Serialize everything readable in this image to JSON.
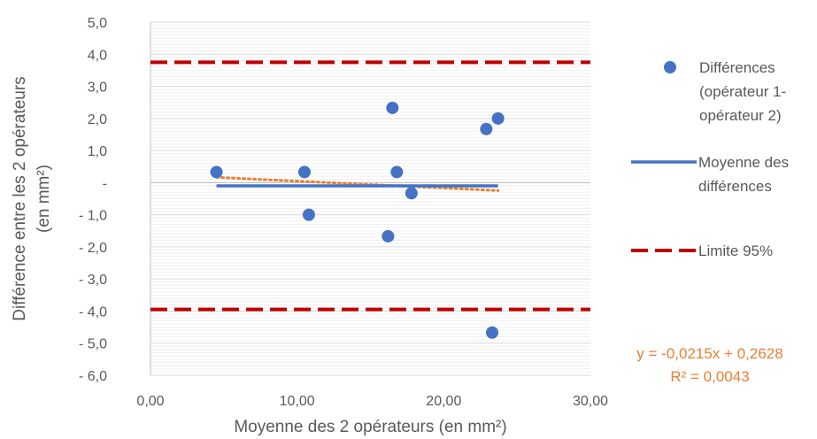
{
  "chart_data": {
    "type": "scatter",
    "xlabel": "Moyenne des 2 opérateurs (en mm²)",
    "ylabel_line1": "Différence entre les 2 opérateurs",
    "ylabel_line2": "(en mm²)",
    "xlim": [
      0,
      30
    ],
    "ylim": [
      -6,
      5
    ],
    "x_ticks": [
      0,
      10,
      20,
      30
    ],
    "x_tick_labels": [
      "0,00",
      "10,00",
      "20,00",
      "30,00"
    ],
    "y_ticks": [
      5,
      4,
      3,
      2,
      1,
      0,
      -1,
      -2,
      -3,
      -4,
      -5,
      -6
    ],
    "y_tick_labels": [
      "5,0",
      "4,0",
      "3,0",
      "2,0",
      "1,0",
      "-",
      "- 1,0",
      "- 2,0",
      "- 3,0",
      "- 4,0",
      "- 5,0",
      "- 6,0"
    ],
    "grid": true,
    "legend_position": "right",
    "series": [
      {
        "name": "Différences (opérateur 1- opérateur 2)",
        "kind": "points",
        "color": "#4472C4",
        "x": [
          4.5,
          10.5,
          10.8,
          16.2,
          16.5,
          16.8,
          17.8,
          22.9,
          23.3,
          23.7
        ],
        "y": [
          0.33,
          0.33,
          -1.0,
          -1.67,
          2.33,
          0.33,
          -0.33,
          1.67,
          -4.67,
          2.0
        ]
      },
      {
        "name": "Moyenne des différences",
        "kind": "line",
        "color": "#4472C4",
        "x": [
          4.5,
          23.7
        ],
        "y": [
          -0.1,
          -0.1
        ]
      },
      {
        "name": "Limite 95%",
        "kind": "dashed",
        "color": "#C00000",
        "upper": 3.75,
        "lower": -3.95
      }
    ],
    "trendline": {
      "color": "#ED7D31",
      "slope": -0.0215,
      "intercept": 0.2628,
      "x_range": [
        4.5,
        23.7
      ],
      "equation": "y = -0,0215x + 0,2628",
      "r2": "R² = 0,0043"
    },
    "legend": {
      "points_label_lines": [
        "Différences",
        "(opérateur 1-",
        "opérateur 2)"
      ],
      "mean_label_lines": [
        "Moyenne des",
        "différences"
      ],
      "limit_label": "Limite 95%"
    }
  }
}
